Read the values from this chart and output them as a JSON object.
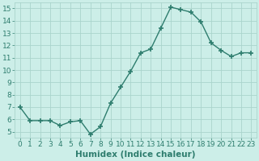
{
  "x": [
    0,
    1,
    2,
    3,
    4,
    5,
    6,
    7,
    8,
    9,
    10,
    11,
    12,
    13,
    14,
    15,
    16,
    17,
    18,
    19,
    20,
    21,
    22,
    23
  ],
  "y": [
    7.0,
    5.9,
    5.9,
    5.9,
    5.5,
    5.8,
    5.9,
    4.8,
    5.4,
    7.3,
    8.6,
    9.9,
    11.4,
    11.7,
    13.4,
    15.1,
    14.9,
    14.7,
    13.9,
    12.2,
    11.6,
    11.1,
    11.4,
    11.4
  ],
  "line_color": "#2e7d6e",
  "marker": "+",
  "marker_size": 4,
  "bg_color": "#cceee8",
  "grid_color": "#aad4cc",
  "xlabel": "Humidex (Indice chaleur)",
  "ylim": [
    4.5,
    15.5
  ],
  "xlim": [
    -0.5,
    23.5
  ],
  "yticks": [
    5,
    6,
    7,
    8,
    9,
    10,
    11,
    12,
    13,
    14,
    15
  ],
  "xticks": [
    0,
    1,
    2,
    3,
    4,
    5,
    6,
    7,
    8,
    9,
    10,
    11,
    12,
    13,
    14,
    15,
    16,
    17,
    18,
    19,
    20,
    21,
    22,
    23
  ],
  "tick_color": "#2e7d6e",
  "label_color": "#2e7d6e",
  "font_size": 6.5,
  "xlabel_fontsize": 7.5,
  "line_width": 1.0,
  "marker_color": "#2e7d6e"
}
